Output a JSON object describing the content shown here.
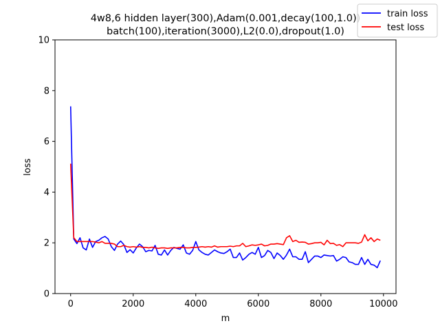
{
  "chart_data": {
    "type": "line",
    "title_line1": "4w8,6 hidden layer(300),Adam(0.001,decay(100,1.0))",
    "title_line2": "batch(100),iteration(3000),L2(0.0),dropout(1.0)",
    "xlabel": "m",
    "ylabel": "loss",
    "xlim": [
      -500,
      10400
    ],
    "ylim": [
      0,
      10
    ],
    "xticks": [
      0,
      2000,
      4000,
      6000,
      8000,
      10000
    ],
    "yticks": [
      0,
      2,
      4,
      6,
      8,
      10
    ],
    "legend_position": "top-right",
    "grid": false,
    "x": [
      0,
      100,
      200,
      300,
      400,
      500,
      600,
      700,
      800,
      900,
      1000,
      1100,
      1200,
      1300,
      1400,
      1500,
      1600,
      1700,
      1800,
      1900,
      2000,
      2100,
      2200,
      2300,
      2400,
      2500,
      2600,
      2700,
      2800,
      2900,
      3000,
      3100,
      3200,
      3300,
      3400,
      3500,
      3600,
      3700,
      3800,
      3900,
      4000,
      4100,
      4200,
      4300,
      4400,
      4500,
      4600,
      4700,
      4800,
      4900,
      5000,
      5100,
      5200,
      5300,
      5400,
      5500,
      5600,
      5700,
      5800,
      5900,
      6000,
      6100,
      6200,
      6300,
      6400,
      6500,
      6600,
      6700,
      6800,
      6900,
      7000,
      7100,
      7200,
      7300,
      7400,
      7500,
      7600,
      7700,
      7800,
      7900,
      8000,
      8100,
      8200,
      8300,
      8400,
      8500,
      8600,
      8700,
      8800,
      8900,
      9000,
      9100,
      9200,
      9300,
      9400,
      9500,
      9600,
      9700,
      9800,
      9900
    ],
    "series": [
      {
        "name": "train loss",
        "color": "#0000ff",
        "values": [
          7.38,
          2.15,
          1.97,
          2.2,
          1.8,
          1.72,
          2.15,
          1.82,
          2.05,
          2.1,
          2.2,
          2.25,
          2.15,
          1.85,
          1.7,
          1.95,
          2.07,
          1.93,
          1.62,
          1.73,
          1.6,
          1.8,
          1.95,
          1.85,
          1.65,
          1.7,
          1.68,
          1.9,
          1.55,
          1.52,
          1.72,
          1.52,
          1.7,
          1.82,
          1.78,
          1.75,
          1.92,
          1.6,
          1.55,
          1.7,
          2.05,
          1.72,
          1.62,
          1.55,
          1.52,
          1.62,
          1.72,
          1.65,
          1.6,
          1.58,
          1.65,
          1.75,
          1.42,
          1.42,
          1.6,
          1.32,
          1.42,
          1.55,
          1.62,
          1.55,
          1.82,
          1.42,
          1.5,
          1.7,
          1.62,
          1.38,
          1.6,
          1.5,
          1.35,
          1.52,
          1.75,
          1.45,
          1.45,
          1.35,
          1.35,
          1.65,
          1.22,
          1.35,
          1.48,
          1.48,
          1.42,
          1.52,
          1.5,
          1.48,
          1.5,
          1.28,
          1.35,
          1.45,
          1.42,
          1.25,
          1.22,
          1.15,
          1.15,
          1.42,
          1.15,
          1.35,
          1.15,
          1.12,
          1.02,
          1.3
        ]
      },
      {
        "name": "test loss",
        "color": "#ff0000",
        "values": [
          5.12,
          2.2,
          2.05,
          2.05,
          2.05,
          2.05,
          2.05,
          2.05,
          2.03,
          2.0,
          2.05,
          1.98,
          1.98,
          1.98,
          1.95,
          1.85,
          1.85,
          1.9,
          1.85,
          1.83,
          1.85,
          1.83,
          1.85,
          1.82,
          1.82,
          1.8,
          1.83,
          1.8,
          1.78,
          1.8,
          1.8,
          1.78,
          1.8,
          1.8,
          1.8,
          1.82,
          1.82,
          1.8,
          1.8,
          1.82,
          1.82,
          1.83,
          1.85,
          1.83,
          1.85,
          1.83,
          1.88,
          1.83,
          1.85,
          1.85,
          1.85,
          1.87,
          1.85,
          1.88,
          1.88,
          1.98,
          1.85,
          1.88,
          1.92,
          1.9,
          1.92,
          1.95,
          1.88,
          1.9,
          1.95,
          1.95,
          1.97,
          1.95,
          1.93,
          2.2,
          2.28,
          2.05,
          2.1,
          2.02,
          2.03,
          2.02,
          1.95,
          1.97,
          2.0,
          2.0,
          2.02,
          1.92,
          2.1,
          1.97,
          1.98,
          1.9,
          1.93,
          1.85,
          2.0,
          2.0,
          2.0,
          2.0,
          1.98,
          2.03,
          2.32,
          2.08,
          2.2,
          2.05,
          2.15,
          2.1
        ]
      }
    ]
  }
}
